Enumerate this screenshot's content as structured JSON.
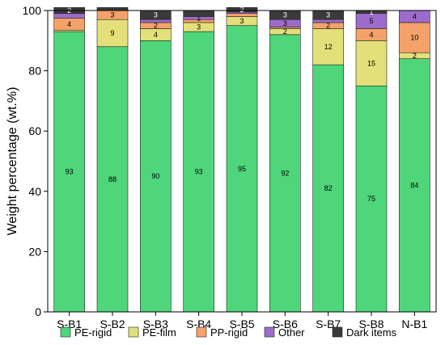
{
  "chart_data": {
    "type": "bar",
    "stacked": true,
    "title": "",
    "xlabel": "",
    "ylabel": "Weight percentage (wt.%)",
    "ylim": [
      0,
      100
    ],
    "yticks": [
      0,
      20,
      40,
      60,
      80,
      100
    ],
    "categories": [
      "S-B1",
      "S-B2",
      "S-B3",
      "S-B4",
      "S-B5",
      "S-B6",
      "S-B7",
      "S-B8",
      "N-B1"
    ],
    "legend_position": "bottom",
    "grid": false,
    "series": [
      {
        "name": "PE-rigid",
        "color": "#4fd67a",
        "values": [
          93,
          88,
          90,
          93,
          95,
          92,
          82,
          75,
          84
        ],
        "labels": [
          "93",
          "88",
          "90",
          "93",
          "95",
          "92",
          "82",
          "75",
          "84"
        ]
      },
      {
        "name": "PE-film",
        "color": "#e3e07a",
        "values": [
          0.5,
          9,
          4,
          3,
          3,
          2,
          12,
          15,
          2
        ],
        "labels": [
          "",
          "9",
          "4",
          "3",
          "3",
          "2",
          "12",
          "15",
          "2"
        ]
      },
      {
        "name": "PP-rigid",
        "color": "#f5a26a",
        "values": [
          4,
          3,
          2,
          1,
          1,
          0.5,
          2,
          4,
          10
        ],
        "labels": [
          "4",
          "3",
          "2",
          "",
          "",
          "",
          "2",
          "4",
          "10"
        ]
      },
      {
        "name": "Other",
        "color": "#9d6bcc",
        "values": [
          1.5,
          0,
          1,
          1,
          0.5,
          2.5,
          1,
          5,
          4
        ],
        "labels": [
          "",
          "",
          "",
          "1",
          "",
          "3",
          "",
          "5",
          "4"
        ]
      },
      {
        "name": "Dark items",
        "color": "#3a3a3a",
        "values": [
          2,
          1,
          3,
          2,
          1.5,
          3,
          3,
          1,
          0
        ],
        "labels": [
          "2",
          "",
          "3",
          "",
          "2",
          "3",
          "3",
          "1",
          ""
        ]
      }
    ]
  }
}
